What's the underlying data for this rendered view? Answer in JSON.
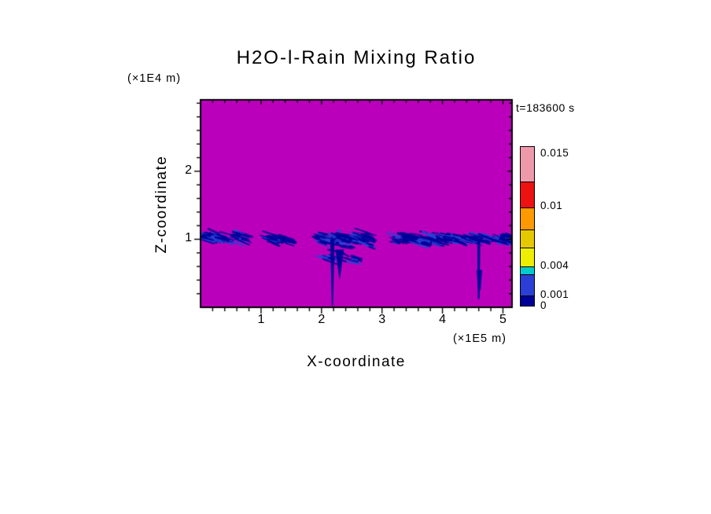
{
  "chart_data": {
    "type": "heatmap",
    "title": "H2O-l-Rain Mixing Ratio",
    "time": "t=183600 s",
    "xlabel": "X-coordinate",
    "x_unit_label": "(×1E5 m)",
    "ylabel": "Z-coordinate",
    "y_unit_label": "(×1E4 m)",
    "xlim": [
      0,
      5.15
    ],
    "ylim": [
      0,
      3.05
    ],
    "x_major_ticks": [
      1,
      2,
      3,
      4,
      5
    ],
    "y_major_ticks": [
      1,
      2
    ],
    "minor_tick_step": 0.2,
    "colors": {
      "background_field": "#BB00BB",
      "rain_dark": "#000099",
      "rain_light": "#2B3FD6",
      "frame": "#000000"
    },
    "colorbar": {
      "orientation": "vertical",
      "units": "mixing ratio",
      "tick_labels": [
        {
          "value": "0.015",
          "frac": 0.95
        },
        {
          "value": "0.01",
          "frac": 0.625
        },
        {
          "value": "0.004",
          "frac": 0.25
        },
        {
          "value": "0.001",
          "frac": 0.07
        },
        {
          "value": "0",
          "frac": 0.0
        }
      ],
      "segments_bottom_to_top": [
        {
          "color": "#000099",
          "frac": 0.07
        },
        {
          "color": "#2B3FD6",
          "frac": 0.13
        },
        {
          "color": "#00CCCC",
          "frac": 0.05
        },
        {
          "color": "#EEEE00",
          "frac": 0.12
        },
        {
          "color": "#E6C800",
          "frac": 0.11
        },
        {
          "color": "#FF9900",
          "frac": 0.14
        },
        {
          "color": "#EE1111",
          "frac": 0.16
        },
        {
          "color": "#EE99AA",
          "frac": 0.22
        }
      ]
    },
    "rain_band_level": 1.0,
    "rain_clusters": [
      {
        "x0": 0.02,
        "x1": 0.75,
        "zc": 1.02,
        "spread": 0.14,
        "density": 70
      },
      {
        "x0": 1.08,
        "x1": 1.5,
        "zc": 1.0,
        "spread": 0.1,
        "density": 40
      },
      {
        "x0": 1.95,
        "x1": 2.85,
        "zc": 1.0,
        "spread": 0.16,
        "density": 130
      },
      {
        "x0": 2.0,
        "x1": 2.6,
        "zc": 0.72,
        "spread": 0.12,
        "density": 25
      },
      {
        "x0": 3.2,
        "x1": 4.35,
        "zc": 1.0,
        "spread": 0.13,
        "density": 140
      },
      {
        "x0": 4.42,
        "x1": 4.78,
        "zc": 1.0,
        "spread": 0.1,
        "density": 45
      },
      {
        "x0": 4.88,
        "x1": 5.14,
        "zc": 1.0,
        "spread": 0.11,
        "density": 35
      }
    ],
    "fall_streaks": [
      {
        "x": 2.18,
        "z_top": 1.0,
        "z_bottom": 0.02,
        "top_width": 0.07,
        "bottom_width": 0.02
      },
      {
        "x": 2.3,
        "z_top": 0.85,
        "z_bottom": 0.42,
        "top_width": 0.14,
        "bottom_width": 0.01
      },
      {
        "x": 4.6,
        "z_top": 1.0,
        "z_bottom": 0.12,
        "top_width": 0.05,
        "bottom_width": 0.03
      },
      {
        "x": 4.61,
        "z_top": 0.55,
        "z_bottom": 0.25,
        "top_width": 0.09,
        "bottom_width": 0.04
      }
    ]
  }
}
